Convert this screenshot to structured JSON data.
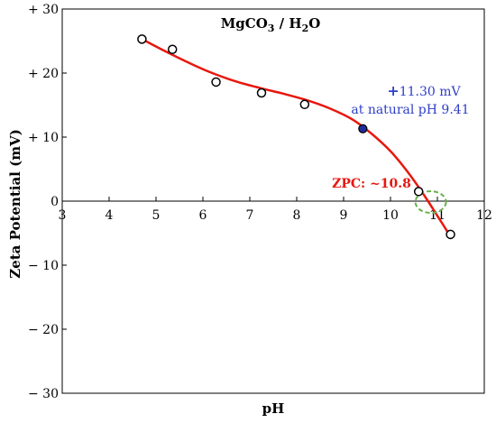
{
  "chart_data": {
    "type": "scatter",
    "title_main": "MgCO",
    "title_sub1": "3",
    "title_mid": " / H",
    "title_sub2": "2",
    "title_end": "O",
    "xlabel": "pH",
    "ylabel": "Zeta Potential (mV)",
    "xlim": [
      3,
      12
    ],
    "ylim": [
      -30,
      30
    ],
    "x_ticks": [
      3,
      4,
      5,
      6,
      7,
      8,
      9,
      10,
      11,
      12
    ],
    "y_ticks": [
      -30,
      -20,
      -10,
      0,
      10,
      20,
      30
    ],
    "y_tick_labels": [
      "− 30",
      "− 20",
      "− 10",
      "0",
      "+ 10",
      "+ 20",
      "+ 30"
    ],
    "grid": false,
    "points": [
      {
        "x": 4.7,
        "y": 25.3
      },
      {
        "x": 5.35,
        "y": 23.7
      },
      {
        "x": 6.28,
        "y": 18.6
      },
      {
        "x": 7.25,
        "y": 16.9
      },
      {
        "x": 8.17,
        "y": 15.1
      },
      {
        "x": 10.6,
        "y": 1.5
      },
      {
        "x": 11.28,
        "y": -5.2
      }
    ],
    "highlight_point": {
      "x": 9.41,
      "y": 11.3
    },
    "fit_curve": [
      {
        "x": 4.7,
        "y": 25.3
      },
      {
        "x": 5.2,
        "y": 23.4
      },
      {
        "x": 5.7,
        "y": 21.6
      },
      {
        "x": 6.2,
        "y": 20.0
      },
      {
        "x": 6.7,
        "y": 18.7
      },
      {
        "x": 7.2,
        "y": 17.7
      },
      {
        "x": 7.7,
        "y": 16.8
      },
      {
        "x": 8.2,
        "y": 15.8
      },
      {
        "x": 8.7,
        "y": 14.5
      },
      {
        "x": 9.2,
        "y": 12.7
      },
      {
        "x": 9.6,
        "y": 10.5
      },
      {
        "x": 10.0,
        "y": 7.8
      },
      {
        "x": 10.3,
        "y": 5.2
      },
      {
        "x": 10.6,
        "y": 2.2
      },
      {
        "x": 10.8,
        "y": 0.0
      },
      {
        "x": 11.0,
        "y": -2.3
      },
      {
        "x": 11.2,
        "y": -4.6
      },
      {
        "x": 11.3,
        "y": -5.9
      }
    ],
    "zpc_x": 10.8,
    "annotations": {
      "value_plus": "+",
      "value_text": "11.30 mV",
      "natural_ph": "at natural pH 9.41",
      "zpc": "ZPC: ~10.8"
    },
    "colors": {
      "curve": "#e8170e",
      "highlight_fill": "#1f2d9c",
      "annotation_blue": "#2e3ec8",
      "zpc_circle": "#6ab04c",
      "marker_stroke": "#000000"
    }
  }
}
